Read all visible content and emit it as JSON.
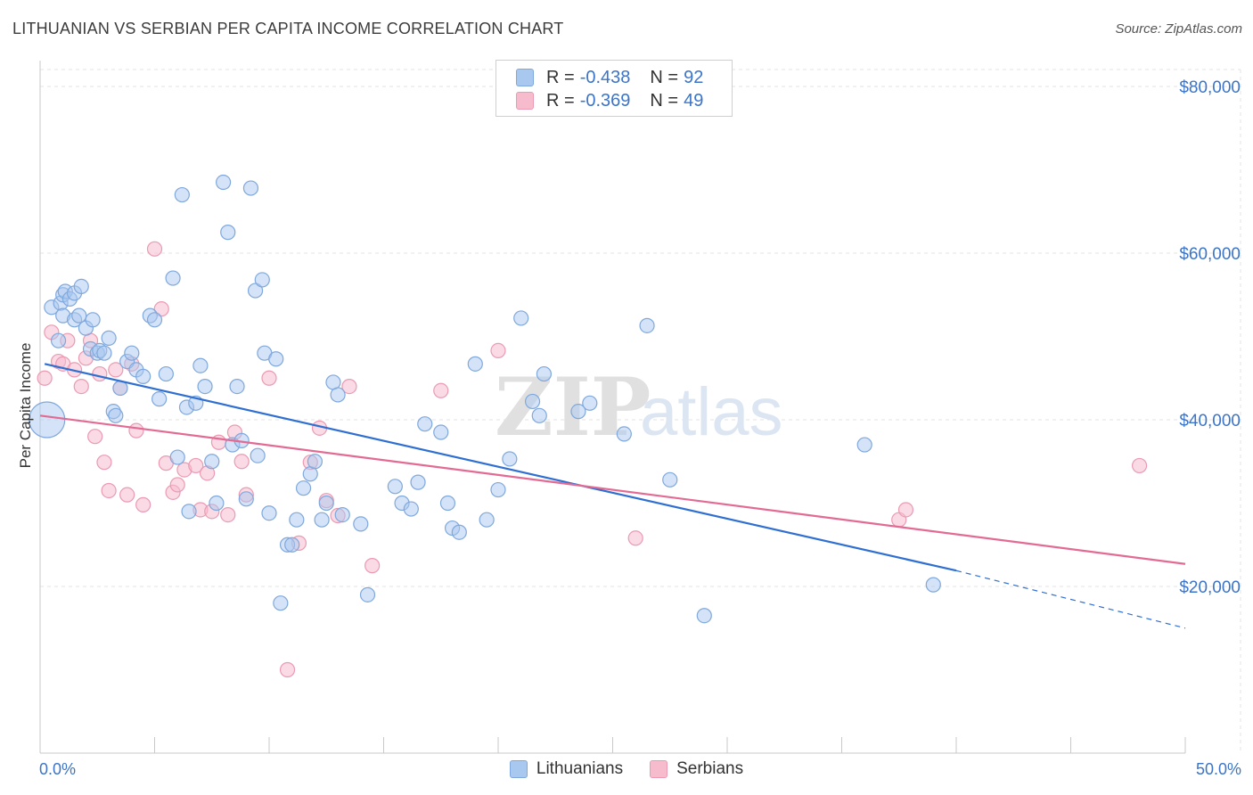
{
  "title": "LITHUANIAN VS SERBIAN PER CAPITA INCOME CORRELATION CHART",
  "source": "Source: ZipAtlas.com",
  "watermark": {
    "zip": "ZIP",
    "atlas": "atlas"
  },
  "legend": {
    "rows": [
      {
        "r_label": "R =",
        "r_value": "-0.438",
        "n_label": "N =",
        "n_value": "92"
      },
      {
        "r_label": "R =",
        "r_value": "-0.369",
        "n_label": "N =",
        "n_value": "49"
      }
    ]
  },
  "colors": {
    "lithuanians_fill": "#a9c8f0",
    "lithuanians_stroke": "#7fa8dc",
    "lithuanians_line": "#2f6fd1",
    "serbians_fill": "#f6bccd",
    "serbians_stroke": "#eb9ab2",
    "serbians_line": "#e36a93",
    "axis_label": "#3b74c8",
    "grid": "#e3e3e3"
  },
  "chart_data": {
    "type": "scatter",
    "title": "LITHUANIAN VS SERBIAN PER CAPITA INCOME CORRELATION CHART",
    "xlabel": "",
    "ylabel": "Per Capita Income",
    "xlim": [
      0,
      50
    ],
    "ylim": [
      0,
      80000
    ],
    "x_tick_labels": [
      "0.0%",
      "50.0%"
    ],
    "y_ticks": [
      20000,
      40000,
      60000,
      80000
    ],
    "y_tick_labels": [
      "$20,000",
      "$40,000",
      "$60,000",
      "$80,000"
    ],
    "grid": true,
    "legend_placement": "top-center",
    "series": [
      {
        "name": "Lithuanians",
        "r": -0.438,
        "n": 92,
        "trend": {
          "x": [
            0.2,
            40.0
          ],
          "y": [
            46700,
            21900
          ],
          "dashed_to": [
            50.0,
            15000
          ]
        },
        "points": [
          [
            0.5,
            53500
          ],
          [
            0.8,
            49500
          ],
          [
            0.9,
            54000
          ],
          [
            1.0,
            55000
          ],
          [
            1.0,
            52500
          ],
          [
            1.1,
            55400
          ],
          [
            1.3,
            54500
          ],
          [
            1.5,
            55200
          ],
          [
            1.5,
            52000
          ],
          [
            1.7,
            52500
          ],
          [
            2.0,
            51000
          ],
          [
            2.2,
            48500
          ],
          [
            2.3,
            52000
          ],
          [
            2.5,
            48000
          ],
          [
            2.6,
            48300
          ],
          [
            2.8,
            48000
          ],
          [
            3.0,
            49800
          ],
          [
            3.2,
            41000
          ],
          [
            3.3,
            40500
          ],
          [
            3.5,
            43800
          ],
          [
            3.8,
            47000
          ],
          [
            4.0,
            48000
          ],
          [
            4.2,
            46000
          ],
          [
            4.5,
            45200
          ],
          [
            4.8,
            52500
          ],
          [
            5.0,
            52000
          ],
          [
            5.2,
            42500
          ],
          [
            5.5,
            45500
          ],
          [
            5.8,
            57000
          ],
          [
            6.0,
            35500
          ],
          [
            6.2,
            67000
          ],
          [
            6.4,
            41500
          ],
          [
            6.5,
            29000
          ],
          [
            6.8,
            42000
          ],
          [
            7.0,
            46500
          ],
          [
            7.2,
            44000
          ],
          [
            7.5,
            35000
          ],
          [
            7.7,
            30000
          ],
          [
            8.0,
            68500
          ],
          [
            8.2,
            62500
          ],
          [
            8.4,
            37000
          ],
          [
            8.6,
            44000
          ],
          [
            8.8,
            37500
          ],
          [
            9.0,
            30500
          ],
          [
            9.2,
            67800
          ],
          [
            9.4,
            55500
          ],
          [
            9.5,
            35700
          ],
          [
            9.7,
            56800
          ],
          [
            9.8,
            48000
          ],
          [
            10.0,
            28800
          ],
          [
            10.3,
            47300
          ],
          [
            10.5,
            18000
          ],
          [
            10.8,
            25000
          ],
          [
            11.0,
            25000
          ],
          [
            11.2,
            28000
          ],
          [
            11.5,
            31800
          ],
          [
            11.8,
            33500
          ],
          [
            12.0,
            35000
          ],
          [
            12.3,
            28000
          ],
          [
            12.5,
            30000
          ],
          [
            12.8,
            44500
          ],
          [
            13.0,
            43000
          ],
          [
            13.2,
            28600
          ],
          [
            14.0,
            27500
          ],
          [
            14.3,
            19000
          ],
          [
            15.5,
            32000
          ],
          [
            15.8,
            30000
          ],
          [
            16.2,
            29300
          ],
          [
            16.5,
            32500
          ],
          [
            16.8,
            39500
          ],
          [
            17.5,
            38500
          ],
          [
            17.8,
            30000
          ],
          [
            18.0,
            27000
          ],
          [
            18.3,
            26500
          ],
          [
            19.0,
            46700
          ],
          [
            19.5,
            28000
          ],
          [
            20.0,
            31600
          ],
          [
            20.5,
            35300
          ],
          [
            21.0,
            52200
          ],
          [
            21.5,
            42200
          ],
          [
            21.8,
            40500
          ],
          [
            22.0,
            45500
          ],
          [
            23.5,
            41000
          ],
          [
            24.0,
            42000
          ],
          [
            25.5,
            38300
          ],
          [
            26.5,
            51300
          ],
          [
            27.5,
            32800
          ],
          [
            29.0,
            16500
          ],
          [
            36.0,
            37000
          ],
          [
            39.0,
            20200
          ],
          [
            0.3,
            40000
          ],
          [
            1.8,
            56000
          ]
        ]
      },
      {
        "name": "Serbians",
        "r": -0.369,
        "n": 49,
        "trend": {
          "x": [
            0.0,
            50.0
          ],
          "y": [
            40500,
            22700
          ]
        },
        "points": [
          [
            0.2,
            45000
          ],
          [
            0.5,
            50500
          ],
          [
            0.8,
            47000
          ],
          [
            1.0,
            46700
          ],
          [
            1.2,
            49500
          ],
          [
            1.5,
            46000
          ],
          [
            1.8,
            44000
          ],
          [
            2.0,
            47400
          ],
          [
            2.2,
            49500
          ],
          [
            2.4,
            38000
          ],
          [
            2.6,
            45500
          ],
          [
            2.8,
            34900
          ],
          [
            3.0,
            31500
          ],
          [
            3.3,
            46000
          ],
          [
            3.5,
            43800
          ],
          [
            3.8,
            31000
          ],
          [
            4.0,
            46700
          ],
          [
            4.2,
            38700
          ],
          [
            4.5,
            29800
          ],
          [
            5.0,
            60500
          ],
          [
            5.3,
            53300
          ],
          [
            5.5,
            34800
          ],
          [
            5.8,
            31300
          ],
          [
            6.0,
            32200
          ],
          [
            6.3,
            34000
          ],
          [
            6.8,
            34500
          ],
          [
            7.0,
            29200
          ],
          [
            7.3,
            33600
          ],
          [
            7.5,
            29000
          ],
          [
            7.8,
            37300
          ],
          [
            8.2,
            28600
          ],
          [
            8.5,
            38500
          ],
          [
            8.8,
            35000
          ],
          [
            9.0,
            31000
          ],
          [
            10.0,
            45000
          ],
          [
            10.8,
            10000
          ],
          [
            11.3,
            25200
          ],
          [
            11.8,
            34900
          ],
          [
            12.2,
            39000
          ],
          [
            12.5,
            30300
          ],
          [
            13.0,
            28500
          ],
          [
            13.5,
            44000
          ],
          [
            14.5,
            22500
          ],
          [
            17.5,
            43500
          ],
          [
            20.0,
            48300
          ],
          [
            26.0,
            25800
          ],
          [
            37.5,
            28000
          ],
          [
            37.8,
            29200
          ],
          [
            48.0,
            34500
          ]
        ]
      }
    ]
  },
  "bottom_legend": [
    "Lithuanians",
    "Serbians"
  ]
}
